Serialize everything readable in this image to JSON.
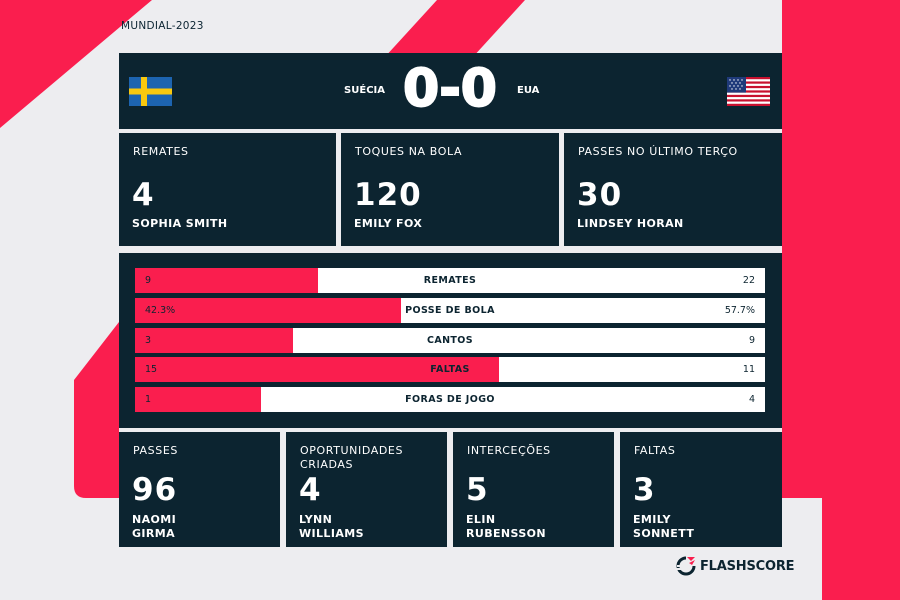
{
  "competition": "MUNDIAL-2023",
  "match": {
    "home_team": "SUÉCIA",
    "away_team": "EUA",
    "score": "0-0",
    "home_flag": "sweden-flag",
    "away_flag": "usa-flag"
  },
  "top_stats": [
    {
      "label": "REMATES",
      "value": "4",
      "player": "SOPHIA SMITH"
    },
    {
      "label": "TOQUES NA BOLA",
      "value": "120",
      "player": "EMILY FOX"
    },
    {
      "label": "PASSES NO ÚLTIMO TERÇO",
      "value": "30",
      "player": "LINDSEY HORAN"
    }
  ],
  "comparison": [
    {
      "label": "REMATES",
      "home": "9",
      "away": "22",
      "home_share": 0.29
    },
    {
      "label": "POSSE DE BOLA",
      "home": "42.3%",
      "away": "57.7%",
      "home_share": 0.423
    },
    {
      "label": "CANTOS",
      "home": "3",
      "away": "9",
      "home_share": 0.25
    },
    {
      "label": "FALTAS",
      "home": "15",
      "away": "11",
      "home_share": 0.577
    },
    {
      "label": "FORAS DE JOGO",
      "home": "1",
      "away": "4",
      "home_share": 0.2
    }
  ],
  "bottom_stats": [
    {
      "label": "PASSES",
      "value": "96",
      "player_line1": "NAOMI",
      "player_line2": "GIRMA"
    },
    {
      "label_line1": "OPORTUNIDADES",
      "label_line2": "CRIADAS",
      "value": "4",
      "player_line1": "LYNN",
      "player_line2": "WILLIAMS"
    },
    {
      "label": "INTERCEÇÕES",
      "value": "5",
      "player_line1": "ELIN",
      "player_line2": "RUBENSSON"
    },
    {
      "label": "FALTAS",
      "value": "3",
      "player_line1": "EMILY",
      "player_line2": "SONNETT"
    }
  ],
  "brand": {
    "name": "FLASHSCORE",
    "icon": "flashscore-logo-icon"
  },
  "colors": {
    "accent": "#fa1e4e",
    "panel": "#0c2430",
    "background": "#ededf0"
  }
}
